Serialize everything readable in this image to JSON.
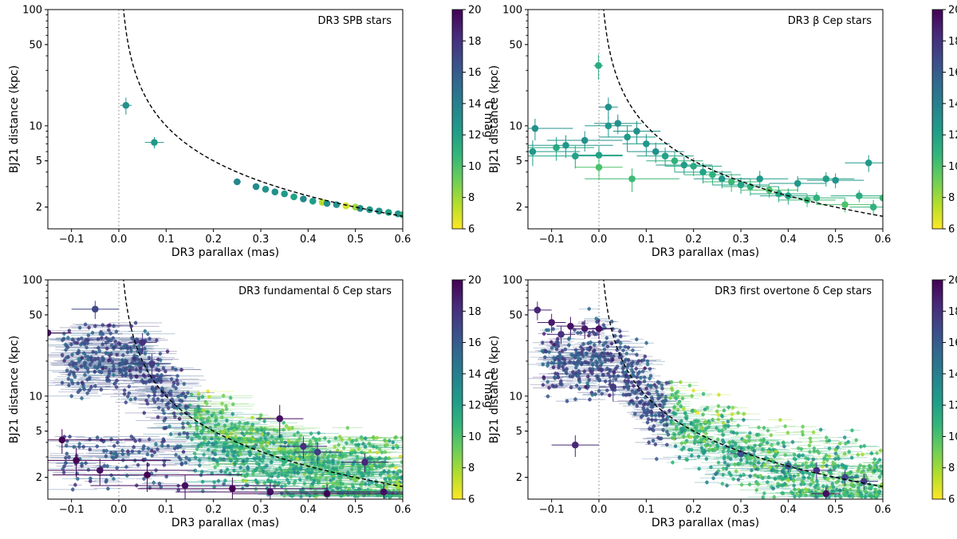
{
  "colormap": {
    "label": "G mag",
    "range": [
      6,
      20
    ],
    "ticks": [
      "6",
      "8",
      "10",
      "12",
      "14",
      "16",
      "18",
      "20"
    ],
    "colors": [
      "#fde725",
      "#b5de2b",
      "#6ece58",
      "#35b779",
      "#1f9e89",
      "#26828e",
      "#31688e",
      "#3e4989",
      "#482878",
      "#440154"
    ]
  },
  "chart_data": [
    {
      "type": "scatter",
      "panel": "top-left",
      "title": "DR3 SPB stars",
      "xlabel": "DR3 parallax (mas)",
      "ylabel": "BJ21 distance (kpc)",
      "xlim": [
        -0.15,
        0.6
      ],
      "ylim": [
        1.3,
        100
      ],
      "yscale": "log",
      "xticks": [
        "−0.1",
        "0.0",
        "0.1",
        "0.2",
        "0.3",
        "0.4",
        "0.5",
        "0.6"
      ],
      "yticks": [
        "2",
        "5",
        "10",
        "50",
        "100"
      ],
      "reference_curve": "distance = 1/parallax",
      "points": [
        {
          "x": 0.015,
          "y": 15.0,
          "g": 13.0,
          "ex": 0.012,
          "ey": 2.5
        },
        {
          "x": 0.075,
          "y": 7.2,
          "g": 12.5,
          "ex": 0.02,
          "ey": 0.8
        },
        {
          "x": 0.25,
          "y": 3.3,
          "g": 13.5,
          "ex": 0.008,
          "ey": 0.2
        },
        {
          "x": 0.29,
          "y": 3.0,
          "g": 13.2,
          "ex": 0.006,
          "ey": 0.15
        },
        {
          "x": 0.31,
          "y": 2.85,
          "g": 12.8,
          "ex": 0.006,
          "ey": 0.12
        },
        {
          "x": 0.33,
          "y": 2.7,
          "g": 13.0,
          "ex": 0.006,
          "ey": 0.1
        },
        {
          "x": 0.35,
          "y": 2.6,
          "g": 12.5,
          "ex": 0.005,
          "ey": 0.1
        },
        {
          "x": 0.37,
          "y": 2.45,
          "g": 12.0,
          "ex": 0.005,
          "ey": 0.1
        },
        {
          "x": 0.39,
          "y": 2.35,
          "g": 13.5,
          "ex": 0.005,
          "ey": 0.1
        },
        {
          "x": 0.41,
          "y": 2.25,
          "g": 12.2,
          "ex": 0.005,
          "ey": 0.1
        },
        {
          "x": 0.43,
          "y": 2.2,
          "g": 7.5,
          "ex": 0.005,
          "ey": 0.1
        },
        {
          "x": 0.44,
          "y": 2.15,
          "g": 13.0,
          "ex": 0.005,
          "ey": 0.1
        },
        {
          "x": 0.46,
          "y": 2.1,
          "g": 12.8,
          "ex": 0.005,
          "ey": 0.1
        },
        {
          "x": 0.48,
          "y": 2.05,
          "g": 7.0,
          "ex": 0.005,
          "ey": 0.1
        },
        {
          "x": 0.5,
          "y": 2.0,
          "g": 8.0,
          "ex": 0.005,
          "ey": 0.1
        },
        {
          "x": 0.51,
          "y": 1.95,
          "g": 13.2,
          "ex": 0.005,
          "ey": 0.1
        },
        {
          "x": 0.53,
          "y": 1.9,
          "g": 12.5,
          "ex": 0.005,
          "ey": 0.1
        },
        {
          "x": 0.55,
          "y": 1.85,
          "g": 13.0,
          "ex": 0.005,
          "ey": 0.1
        },
        {
          "x": 0.57,
          "y": 1.8,
          "g": 12.0,
          "ex": 0.005,
          "ey": 0.1
        },
        {
          "x": 0.59,
          "y": 1.75,
          "g": 12.8,
          "ex": 0.005,
          "ey": 0.1
        },
        {
          "x": 0.6,
          "y": 1.72,
          "g": 11.5,
          "ex": 0.005,
          "ey": 0.1
        }
      ]
    },
    {
      "type": "scatter",
      "panel": "top-right",
      "title": "DR3 β Cep stars",
      "xlabel": "DR3 parallax (mas)",
      "ylabel": "BJ21 distance (kpc)",
      "xlim": [
        -0.15,
        0.6
      ],
      "ylim": [
        1.3,
        100
      ],
      "yscale": "log",
      "xticks": [
        "−0.1",
        "0.0",
        "0.1",
        "0.2",
        "0.3",
        "0.4",
        "0.5",
        "0.6"
      ],
      "yticks": [
        "2",
        "5",
        "10",
        "50",
        "100"
      ],
      "reference_curve": "distance = 1/parallax",
      "points": [
        {
          "x": -0.001,
          "y": 33.0,
          "g": 11.5,
          "ex": 0.01,
          "ey": 8.0
        },
        {
          "x": -0.135,
          "y": 9.5,
          "g": 13.0,
          "ex": 0.08,
          "ey": 2.0
        },
        {
          "x": -0.14,
          "y": 6.0,
          "g": 12.5,
          "ex": 0.1,
          "ey": 1.5
        },
        {
          "x": -0.09,
          "y": 6.5,
          "g": 11.5,
          "ex": 0.08,
          "ey": 1.5
        },
        {
          "x": -0.07,
          "y": 6.8,
          "g": 12.5,
          "ex": 0.1,
          "ey": 1.5
        },
        {
          "x": -0.05,
          "y": 5.5,
          "g": 12.0,
          "ex": 0.1,
          "ey": 1.2
        },
        {
          "x": -0.03,
          "y": 7.5,
          "g": 13.0,
          "ex": 0.08,
          "ey": 1.5
        },
        {
          "x": 0.0,
          "y": 5.6,
          "g": 12.0,
          "ex": 0.05,
          "ey": 1.0
        },
        {
          "x": 0.0,
          "y": 4.4,
          "g": 10.0,
          "ex": 0.05,
          "ey": 1.0
        },
        {
          "x": 0.02,
          "y": 14.5,
          "g": 13.0,
          "ex": 0.02,
          "ey": 3.0
        },
        {
          "x": 0.02,
          "y": 10.0,
          "g": 12.5,
          "ex": 0.05,
          "ey": 2.0
        },
        {
          "x": 0.04,
          "y": 10.5,
          "g": 13.0,
          "ex": 0.05,
          "ey": 2.0
        },
        {
          "x": 0.06,
          "y": 8.0,
          "g": 12.5,
          "ex": 0.06,
          "ey": 2.0
        },
        {
          "x": 0.08,
          "y": 9.0,
          "g": 13.0,
          "ex": 0.05,
          "ey": 2.0
        },
        {
          "x": 0.1,
          "y": 7.0,
          "g": 12.5,
          "ex": 0.05,
          "ey": 1.5
        },
        {
          "x": 0.07,
          "y": 3.5,
          "g": 10.5,
          "ex": 0.1,
          "ey": 0.8
        },
        {
          "x": 0.12,
          "y": 6.0,
          "g": 13.0,
          "ex": 0.06,
          "ey": 1.2
        },
        {
          "x": 0.14,
          "y": 5.5,
          "g": 12.0,
          "ex": 0.06,
          "ey": 1.0
        },
        {
          "x": 0.16,
          "y": 5.0,
          "g": 11.0,
          "ex": 0.06,
          "ey": 1.0
        },
        {
          "x": 0.18,
          "y": 4.6,
          "g": 12.5,
          "ex": 0.06,
          "ey": 0.8
        },
        {
          "x": 0.2,
          "y": 4.5,
          "g": 11.5,
          "ex": 0.06,
          "ey": 0.8
        },
        {
          "x": 0.22,
          "y": 4.0,
          "g": 12.0,
          "ex": 0.06,
          "ey": 0.8
        },
        {
          "x": 0.24,
          "y": 3.8,
          "g": 11.0,
          "ex": 0.06,
          "ey": 0.7
        },
        {
          "x": 0.26,
          "y": 3.5,
          "g": 12.5,
          "ex": 0.06,
          "ey": 0.6
        },
        {
          "x": 0.28,
          "y": 3.3,
          "g": 10.5,
          "ex": 0.06,
          "ey": 0.6
        },
        {
          "x": 0.3,
          "y": 3.1,
          "g": 12.0,
          "ex": 0.06,
          "ey": 0.5
        },
        {
          "x": 0.32,
          "y": 3.0,
          "g": 11.0,
          "ex": 0.06,
          "ey": 0.5
        },
        {
          "x": 0.34,
          "y": 3.5,
          "g": 12.5,
          "ex": 0.06,
          "ey": 0.6
        },
        {
          "x": 0.36,
          "y": 2.8,
          "g": 10.0,
          "ex": 0.06,
          "ey": 0.4
        },
        {
          "x": 0.38,
          "y": 2.6,
          "g": 11.5,
          "ex": 0.06,
          "ey": 0.4
        },
        {
          "x": 0.4,
          "y": 2.5,
          "g": 12.0,
          "ex": 0.06,
          "ey": 0.4
        },
        {
          "x": 0.42,
          "y": 3.2,
          "g": 12.5,
          "ex": 0.06,
          "ey": 0.5
        },
        {
          "x": 0.44,
          "y": 2.3,
          "g": 10.5,
          "ex": 0.06,
          "ey": 0.3
        },
        {
          "x": 0.46,
          "y": 2.4,
          "g": 11.0,
          "ex": 0.06,
          "ey": 0.3
        },
        {
          "x": 0.48,
          "y": 3.5,
          "g": 12.0,
          "ex": 0.06,
          "ey": 0.5
        },
        {
          "x": 0.5,
          "y": 3.4,
          "g": 12.8,
          "ex": 0.06,
          "ey": 0.5
        },
        {
          "x": 0.52,
          "y": 2.1,
          "g": 10.0,
          "ex": 0.06,
          "ey": 0.3
        },
        {
          "x": 0.55,
          "y": 2.5,
          "g": 11.5,
          "ex": 0.06,
          "ey": 0.3
        },
        {
          "x": 0.57,
          "y": 4.8,
          "g": 12.5,
          "ex": 0.05,
          "ey": 0.8
        },
        {
          "x": 0.58,
          "y": 2.0,
          "g": 11.0,
          "ex": 0.05,
          "ey": 0.3
        },
        {
          "x": 0.6,
          "y": 2.4,
          "g": 10.5,
          "ex": 0.05,
          "ey": 0.3
        }
      ]
    },
    {
      "type": "scatter",
      "panel": "bottom-left",
      "title": "DR3 fundamental δ Cep stars",
      "xlabel": "DR3 parallax (mas)",
      "ylabel": "BJ21 distance (kpc)",
      "xlim": [
        -0.15,
        0.6
      ],
      "ylim": [
        1.3,
        100
      ],
      "yscale": "log",
      "xticks": [
        "−0.1",
        "0.0",
        "0.1",
        "0.2",
        "0.3",
        "0.4",
        "0.5",
        "0.6"
      ],
      "yticks": [
        "2",
        "5",
        "10",
        "50",
        "100"
      ],
      "reference_curve": "distance = 1/parallax",
      "density_cloud": true,
      "points": [
        {
          "x": -0.05,
          "y": 56.0,
          "g": 17.0,
          "ex": 0.05,
          "ey": 10.0
        },
        {
          "x": -0.15,
          "y": 35.0,
          "g": 19.5,
          "ex": 0.05,
          "ey": 8.0
        },
        {
          "x": 0.05,
          "y": 29.0,
          "g": 18.0,
          "ex": 0.03,
          "ey": 6.0
        },
        {
          "x": 0.07,
          "y": 19.0,
          "g": 17.5,
          "ex": 0.04,
          "ey": 4.0
        },
        {
          "x": 0.34,
          "y": 6.4,
          "g": 19.5,
          "ex": 0.05,
          "ey": 2.0
        },
        {
          "x": 0.39,
          "y": 3.7,
          "g": 18.0,
          "ex": 0.05,
          "ey": 0.8
        },
        {
          "x": 0.42,
          "y": 3.3,
          "g": 17.5,
          "ex": 0.05,
          "ey": 0.7
        },
        {
          "x": 0.52,
          "y": 2.7,
          "g": 18.5,
          "ex": 0.05,
          "ey": 0.5
        },
        {
          "x": -0.12,
          "y": 4.2,
          "g": 20.0,
          "ex": 0.15,
          "ey": 1.0
        },
        {
          "x": -0.09,
          "y": 2.8,
          "g": 20.0,
          "ex": 0.2,
          "ey": 0.8
        },
        {
          "x": -0.04,
          "y": 2.3,
          "g": 19.5,
          "ex": 0.2,
          "ey": 0.6
        },
        {
          "x": 0.06,
          "y": 2.1,
          "g": 20.0,
          "ex": 0.2,
          "ey": 0.6
        },
        {
          "x": 0.14,
          "y": 1.7,
          "g": 19.5,
          "ex": 0.2,
          "ey": 0.4
        },
        {
          "x": 0.24,
          "y": 1.6,
          "g": 20.0,
          "ex": 0.2,
          "ey": 0.4
        },
        {
          "x": 0.32,
          "y": 1.5,
          "g": 19.5,
          "ex": 0.2,
          "ey": 0.3
        },
        {
          "x": 0.44,
          "y": 1.45,
          "g": 20.0,
          "ex": 0.2,
          "ey": 0.3
        },
        {
          "x": 0.56,
          "y": 1.5,
          "g": 19.5,
          "ex": 0.1,
          "ey": 0.3
        },
        {
          "x": 0.59,
          "y": 1.7,
          "g": 8.0,
          "ex": 0.02,
          "ey": 0.2
        },
        {
          "x": 0.5,
          "y": 1.95,
          "g": 9.0,
          "ex": 0.02,
          "ey": 0.2
        },
        {
          "x": 0.45,
          "y": 2.2,
          "g": 10.5,
          "ex": 0.02,
          "ey": 0.2
        },
        {
          "x": 0.35,
          "y": 2.8,
          "g": 11.0,
          "ex": 0.02,
          "ey": 0.3
        }
      ]
    },
    {
      "type": "scatter",
      "panel": "bottom-right",
      "title": "DR3 first overtone δ Cep stars",
      "xlabel": "DR3 parallax (mas)",
      "ylabel": "BJ21 distance (kpc)",
      "xlim": [
        -0.15,
        0.6
      ],
      "ylim": [
        1.3,
        100
      ],
      "yscale": "log",
      "xticks": [
        "−0.1",
        "0.0",
        "0.1",
        "0.2",
        "0.3",
        "0.4",
        "0.5",
        "0.6"
      ],
      "yticks": [
        "2",
        "5",
        "10",
        "50",
        "100"
      ],
      "reference_curve": "distance = 1/parallax",
      "density_cloud": true,
      "points": [
        {
          "x": -0.13,
          "y": 55.0,
          "g": 18.5,
          "ex": 0.03,
          "ey": 10.0
        },
        {
          "x": -0.1,
          "y": 43.0,
          "g": 19.0,
          "ex": 0.03,
          "ey": 8.0
        },
        {
          "x": -0.06,
          "y": 40.0,
          "g": 19.5,
          "ex": 0.03,
          "ey": 8.0
        },
        {
          "x": -0.03,
          "y": 38.0,
          "g": 19.0,
          "ex": 0.03,
          "ey": 7.0
        },
        {
          "x": 0.0,
          "y": 38.0,
          "g": 19.5,
          "ex": 0.03,
          "ey": 7.0
        },
        {
          "x": -0.08,
          "y": 34.0,
          "g": 18.0,
          "ex": 0.03,
          "ey": 6.0
        },
        {
          "x": 0.03,
          "y": 12.0,
          "g": 17.5,
          "ex": 0.03,
          "ey": 3.0
        },
        {
          "x": -0.05,
          "y": 3.8,
          "g": 18.5,
          "ex": 0.05,
          "ey": 0.8
        },
        {
          "x": 0.46,
          "y": 2.3,
          "g": 18.0,
          "ex": 0.04,
          "ey": 0.4
        },
        {
          "x": 0.48,
          "y": 1.45,
          "g": 19.5,
          "ex": 0.03,
          "ey": 0.2
        },
        {
          "x": 0.52,
          "y": 2.0,
          "g": 17.0,
          "ex": 0.03,
          "ey": 0.3
        },
        {
          "x": 0.56,
          "y": 1.85,
          "g": 17.5,
          "ex": 0.03,
          "ey": 0.3
        },
        {
          "x": 0.6,
          "y": 1.7,
          "g": 8.5,
          "ex": 0.02,
          "ey": 0.2
        },
        {
          "x": 0.3,
          "y": 3.2,
          "g": 16.5,
          "ex": 0.03,
          "ey": 0.4
        },
        {
          "x": 0.4,
          "y": 2.5,
          "g": 16.0,
          "ex": 0.03,
          "ey": 0.3
        }
      ]
    }
  ]
}
